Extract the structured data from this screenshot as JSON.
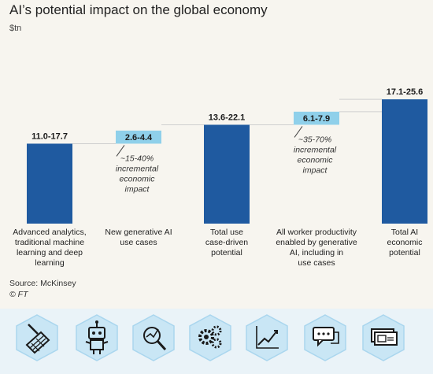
{
  "title": "AI’s potential impact on the global economy",
  "unit_label": "$tn",
  "source_label": "Source: McKinsey",
  "copyright": "© FT",
  "chart_data": {
    "type": "bar",
    "variant": "waterfall",
    "title": "AI’s potential impact on the global economy",
    "ylabel": "$tn",
    "ylim": [
      0,
      26
    ],
    "grid": false,
    "categories": [
      "Advanced analytics, traditional machine learning and deep learning",
      "New generative AI use cases",
      "Total use case-driven potential",
      "All worker productivity enabled by generative AI, including in use cases",
      "Total AI economic potential"
    ],
    "category_lines": [
      [
        "Advanced analytics,",
        "traditional machine",
        "learning and deep",
        "learning"
      ],
      [
        "New generative AI",
        "use cases"
      ],
      [
        "Total use",
        "case-driven",
        "potential"
      ],
      [
        "All worker productivity",
        "enabled by generative",
        "AI, including in",
        "use cases"
      ],
      [
        "Total AI",
        "economic",
        "potential"
      ]
    ],
    "bars": [
      {
        "kind": "total",
        "low": 11.0,
        "high": 17.7,
        "value_label": "11.0-17.7",
        "color": "#1f5aa0"
      },
      {
        "kind": "increment",
        "low": 2.6,
        "high": 4.4,
        "value_label": "2.6-4.4",
        "color": "#8fd0ea"
      },
      {
        "kind": "total",
        "low": 13.6,
        "high": 22.1,
        "value_label": "13.6-22.1",
        "color": "#1f5aa0"
      },
      {
        "kind": "increment",
        "low": 6.1,
        "high": 7.9,
        "value_label": "6.1-7.9",
        "color": "#8fd0ea"
      },
      {
        "kind": "total",
        "low": 17.1,
        "high": 25.6,
        "value_label": "17.1-25.6",
        "color": "#1f5aa0"
      }
    ],
    "annotations": [
      {
        "after_bar": 1,
        "lines": [
          "~15-40%",
          "incremental",
          "economic",
          "impact"
        ]
      },
      {
        "after_bar": 3,
        "lines": [
          "~35-70%",
          "incremental",
          "economic",
          "impact"
        ]
      }
    ]
  },
  "icons": [
    {
      "name": "drawing-grid-icon"
    },
    {
      "name": "robot-icon"
    },
    {
      "name": "magnifier-chart-icon"
    },
    {
      "name": "gears-icon"
    },
    {
      "name": "line-chart-icon"
    },
    {
      "name": "chat-bubbles-icon"
    },
    {
      "name": "banknotes-icon"
    }
  ],
  "colors": {
    "dark_bar": "#1f5aa0",
    "light_bar": "#8fd0ea",
    "icon_fill": "#c9e6f5",
    "icon_stroke": "#1a1a1a"
  }
}
